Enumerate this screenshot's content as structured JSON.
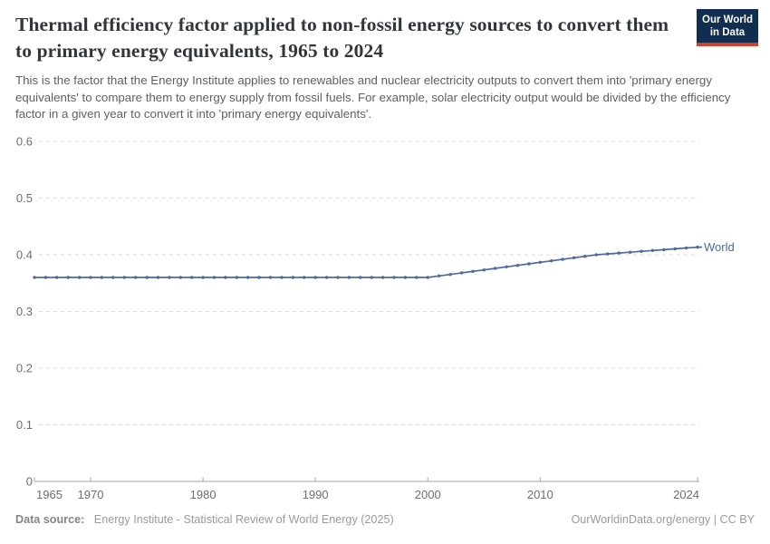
{
  "header": {
    "title": "Thermal efficiency factor applied to non-fossil energy sources to convert them to primary energy equivalents, 1965 to 2024",
    "subtitle": "This is the factor that the Energy Institute applies to renewables and nuclear electricity outputs to convert them into 'primary energy equivalents' to compare them to energy supply from fossil fuels. For example, solar electricity output would be divided by the efficiency factor in a given year to convert it into 'primary energy equivalents'."
  },
  "logo": {
    "line1": "Our World",
    "line2": "in Data",
    "bg_color": "#112e51",
    "accent_color": "#d3402f"
  },
  "chart_data": {
    "type": "line",
    "title": "Thermal efficiency factor applied to non-fossil energy sources to convert them to primary energy equivalents",
    "xlabel": "",
    "ylabel": "",
    "xlim": [
      1965,
      2024
    ],
    "ylim": [
      0,
      0.6
    ],
    "x_ticks": [
      1965,
      1970,
      1980,
      1990,
      2000,
      2010,
      2024
    ],
    "y_ticks": [
      0,
      0.1,
      0.2,
      0.3,
      0.4,
      0.5,
      0.6
    ],
    "grid": "horizontal-dashed",
    "legend_position": "end-of-line",
    "series": [
      {
        "name": "World",
        "color": "#4c6a9c",
        "x": [
          1965,
          1966,
          1967,
          1968,
          1969,
          1970,
          1971,
          1972,
          1973,
          1974,
          1975,
          1976,
          1977,
          1978,
          1979,
          1980,
          1981,
          1982,
          1983,
          1984,
          1985,
          1986,
          1987,
          1988,
          1989,
          1990,
          1991,
          1992,
          1993,
          1994,
          1995,
          1996,
          1997,
          1998,
          1999,
          2000,
          2001,
          2002,
          2003,
          2004,
          2005,
          2006,
          2007,
          2008,
          2009,
          2010,
          2011,
          2012,
          2013,
          2014,
          2015,
          2016,
          2017,
          2018,
          2019,
          2020,
          2021,
          2022,
          2023,
          2024
        ],
        "values": [
          0.36,
          0.36,
          0.36,
          0.36,
          0.36,
          0.36,
          0.36,
          0.36,
          0.36,
          0.36,
          0.36,
          0.36,
          0.36,
          0.36,
          0.36,
          0.36,
          0.36,
          0.36,
          0.36,
          0.36,
          0.36,
          0.36,
          0.36,
          0.36,
          0.36,
          0.36,
          0.36,
          0.36,
          0.36,
          0.36,
          0.36,
          0.36,
          0.36,
          0.36,
          0.36,
          0.36,
          0.3627,
          0.3653,
          0.368,
          0.3707,
          0.3733,
          0.376,
          0.3787,
          0.3813,
          0.384,
          0.3867,
          0.3893,
          0.392,
          0.3947,
          0.3973,
          0.4,
          0.4015,
          0.403,
          0.4045,
          0.406,
          0.4075,
          0.409,
          0.4105,
          0.412,
          0.4135
        ]
      }
    ]
  },
  "footer": {
    "datasource_label": "Data source:",
    "datasource_text": "Energy Institute - Statistical Review of World Energy (2025)",
    "attribution": "OurWorldinData.org/energy | CC BY"
  }
}
